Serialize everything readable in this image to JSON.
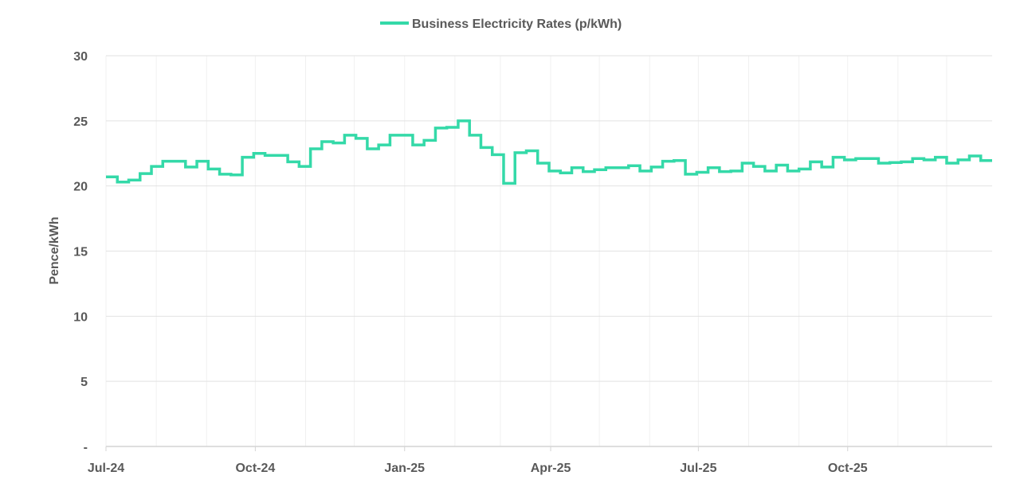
{
  "chart_data": {
    "type": "line",
    "title": "",
    "xlabel": "",
    "ylabel": "Pence/kWh",
    "ylim": [
      0,
      30
    ],
    "y_ticks": [
      0,
      5,
      10,
      15,
      20,
      25,
      30
    ],
    "y_tick_labels": [
      "-",
      "5",
      "10",
      "15",
      "20",
      "25",
      "30"
    ],
    "x_tick_labels": [
      {
        "date": "2024-07-01",
        "label": "Jul-24"
      },
      {
        "date": "2024-10-01",
        "label": "Oct-24"
      },
      {
        "date": "2025-01-01",
        "label": "Jan-25"
      },
      {
        "date": "2025-04-01",
        "label": "Apr-25"
      },
      {
        "date": "2025-07-01",
        "label": "Jul-25"
      },
      {
        "date": "2025-10-01",
        "label": "Oct-25"
      }
    ],
    "grid": true,
    "legend_position": "top",
    "line_style": "step",
    "series": [
      {
        "name": "Business Electricity Rates (p/kWh)",
        "color": "#34d9a8",
        "x": [
          "2024-07-01",
          "2024-07-08",
          "2024-07-15",
          "2024-07-22",
          "2024-07-29",
          "2024-08-05",
          "2024-08-12",
          "2024-08-19",
          "2024-08-26",
          "2024-09-02",
          "2024-09-09",
          "2024-09-16",
          "2024-09-23",
          "2024-09-30",
          "2024-10-07",
          "2024-10-14",
          "2024-10-21",
          "2024-10-28",
          "2024-11-04",
          "2024-11-11",
          "2024-11-18",
          "2024-11-25",
          "2024-12-02",
          "2024-12-09",
          "2024-12-16",
          "2024-12-23",
          "2024-12-30",
          "2025-01-06",
          "2025-01-13",
          "2025-01-20",
          "2025-01-27",
          "2025-02-03",
          "2025-02-10",
          "2025-02-17",
          "2025-02-24",
          "2025-03-03",
          "2025-03-10",
          "2025-03-17",
          "2025-03-24",
          "2025-03-31",
          "2025-04-07",
          "2025-04-14",
          "2025-04-21",
          "2025-04-28",
          "2025-05-05",
          "2025-05-12",
          "2025-05-19",
          "2025-05-26",
          "2025-06-02",
          "2025-06-09",
          "2025-06-16",
          "2025-06-23",
          "2025-06-30",
          "2025-07-07",
          "2025-07-14",
          "2025-07-21",
          "2025-07-28",
          "2025-08-04",
          "2025-08-11",
          "2025-08-18",
          "2025-08-25",
          "2025-09-01",
          "2025-09-08",
          "2025-09-15",
          "2025-09-22",
          "2025-09-29",
          "2025-10-06",
          "2025-10-13",
          "2025-10-20",
          "2025-10-27",
          "2025-11-03",
          "2025-11-10",
          "2025-11-17",
          "2025-11-24",
          "2025-12-01",
          "2025-12-08",
          "2025-12-15",
          "2025-12-22"
        ],
        "values": [
          20.7,
          20.3,
          20.45,
          20.95,
          21.5,
          21.9,
          21.9,
          21.45,
          21.9,
          21.3,
          20.9,
          20.85,
          22.2,
          22.5,
          22.35,
          22.35,
          21.85,
          21.5,
          22.85,
          23.4,
          23.3,
          23.9,
          23.65,
          22.85,
          23.15,
          23.9,
          23.9,
          23.15,
          23.5,
          24.45,
          24.5,
          25.0,
          23.9,
          22.95,
          22.4,
          20.2,
          22.55,
          22.7,
          21.75,
          21.15,
          21.0,
          21.4,
          21.1,
          21.25,
          21.4,
          21.4,
          21.55,
          21.15,
          21.45,
          21.9,
          21.95,
          20.9,
          21.05,
          21.4,
          21.1,
          21.15,
          21.75,
          21.5,
          21.15,
          21.6,
          21.15,
          21.3,
          21.85,
          21.45,
          22.2,
          22.0,
          22.1,
          22.1,
          21.75,
          21.8,
          21.85,
          22.1,
          22.0,
          22.2,
          21.75,
          22.0,
          22.3,
          21.95
        ]
      }
    ]
  }
}
